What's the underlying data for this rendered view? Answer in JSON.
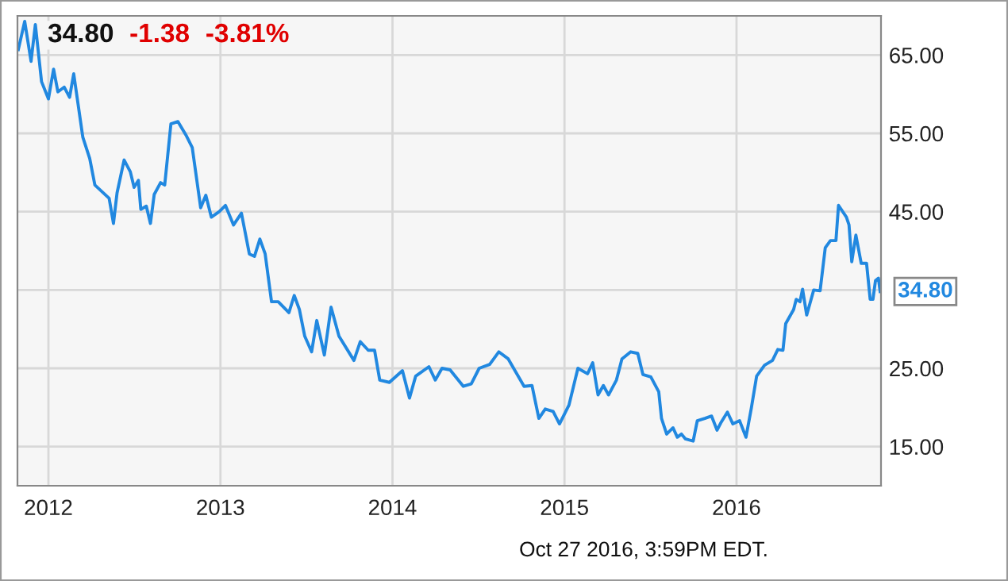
{
  "chart_data": {
    "type": "line",
    "x": [
      2011.825,
      2011.862,
      2011.899,
      2011.924,
      2011.96,
      2012.0,
      2012.03,
      2012.055,
      2012.092,
      2012.123,
      2012.147,
      2012.2,
      2012.24,
      2012.27,
      2012.353,
      2012.378,
      2012.399,
      2012.44,
      2012.476,
      2012.498,
      2012.523,
      2012.537,
      2012.569,
      2012.593,
      2012.615,
      2012.652,
      2012.676,
      2012.712,
      2012.753,
      2012.799,
      2012.836,
      2012.885,
      2012.915,
      2012.947,
      2012.993,
      2013.029,
      2013.076,
      2013.122,
      2013.168,
      2013.198,
      2013.229,
      2013.26,
      2013.297,
      2013.336,
      2013.398,
      2013.429,
      2013.459,
      2013.49,
      2013.53,
      2013.56,
      2013.604,
      2013.643,
      2013.689,
      2013.776,
      2013.813,
      2013.859,
      2013.896,
      2013.926,
      2013.982,
      2014.058,
      2014.099,
      2014.135,
      2014.212,
      2014.249,
      2014.288,
      2014.335,
      2014.412,
      2014.458,
      2014.504,
      2014.565,
      2014.618,
      2014.673,
      2014.765,
      2014.811,
      2014.851,
      2014.888,
      2014.934,
      2014.971,
      2015.026,
      2015.078,
      2015.134,
      2015.164,
      2015.195,
      2015.226,
      2015.256,
      2015.302,
      2015.334,
      2015.385,
      2015.426,
      2015.456,
      2015.502,
      2015.548,
      2015.564,
      2015.594,
      2015.631,
      2015.656,
      2015.68,
      2015.702,
      2015.748,
      2015.772,
      2015.816,
      2015.855,
      2015.887,
      2015.908,
      2015.947,
      2015.979,
      2016.018,
      2016.055,
      2016.086,
      2016.117,
      2016.163,
      2016.209,
      2016.24,
      2016.27,
      2016.286,
      2016.332,
      2016.347,
      2016.369,
      2016.384,
      2016.408,
      2016.449,
      2016.486,
      2016.516,
      2016.546,
      2016.578,
      2016.593,
      2016.639,
      2016.654,
      2016.67,
      2016.694,
      2016.725,
      2016.756,
      2016.777,
      2016.793,
      2016.808,
      2016.825,
      2016.835
    ],
    "series": [
      {
        "color": "#2188e0",
        "values": [
          65.7,
          69.3,
          64.2,
          68.9,
          61.6,
          59.4,
          63.2,
          60.3,
          60.9,
          59.6,
          62.6,
          54.5,
          51.8,
          48.4,
          46.7,
          43.5,
          47.4,
          51.6,
          50.1,
          48.1,
          49.0,
          45.3,
          45.7,
          43.5,
          47.2,
          48.7,
          48.4,
          56.2,
          56.5,
          54.8,
          53.2,
          45.5,
          47.1,
          44.3,
          45.0,
          45.8,
          43.3,
          44.8,
          39.6,
          39.3,
          41.5,
          39.6,
          33.5,
          33.5,
          32.1,
          34.3,
          32.5,
          29.1,
          27.1,
          31.1,
          26.7,
          32.8,
          29.1,
          26.0,
          28.4,
          27.3,
          27.3,
          23.5,
          23.2,
          24.7,
          21.2,
          24.0,
          25.2,
          23.5,
          25.0,
          24.8,
          22.7,
          23.0,
          25.0,
          25.5,
          27.1,
          26.2,
          22.7,
          22.8,
          18.6,
          19.8,
          19.5,
          17.9,
          20.3,
          25.0,
          24.3,
          25.7,
          21.6,
          22.8,
          21.6,
          23.5,
          26.2,
          27.1,
          26.9,
          24.2,
          23.9,
          22.0,
          18.6,
          16.6,
          17.4,
          16.2,
          16.6,
          16.0,
          15.7,
          18.3,
          18.6,
          18.9,
          17.1,
          18.0,
          19.4,
          17.9,
          18.3,
          16.2,
          19.9,
          24.0,
          25.4,
          26.0,
          27.4,
          27.3,
          30.7,
          32.5,
          33.8,
          33.5,
          35.1,
          31.8,
          35.0,
          34.9,
          40.4,
          41.3,
          41.3,
          45.8,
          44.3,
          43.3,
          38.6,
          42.0,
          38.4,
          38.4,
          33.8,
          33.8,
          36.2,
          36.5,
          34.8
        ]
      }
    ],
    "xlim": [
      2011.82,
      2016.84
    ],
    "ylim": [
      10,
      70
    ],
    "xticks": [
      2012,
      2013,
      2014,
      2015,
      2016
    ],
    "yticks": [
      {
        "value": 15,
        "label": "15.00"
      },
      {
        "value": 25,
        "label": "25.00"
      },
      {
        "value": 35,
        "label": null
      },
      {
        "value": 45,
        "label": "45.00"
      },
      {
        "value": 55,
        "label": "55.00"
      },
      {
        "value": 65,
        "label": "65.00"
      }
    ],
    "grid": true,
    "annotations": [
      "34.80",
      "-1.38",
      "-3.81%",
      {
        "text": "34.80",
        "x": 2016.835,
        "y": 34.8
      },
      "Oct 27 2016, 3:59PM EDT."
    ]
  }
}
